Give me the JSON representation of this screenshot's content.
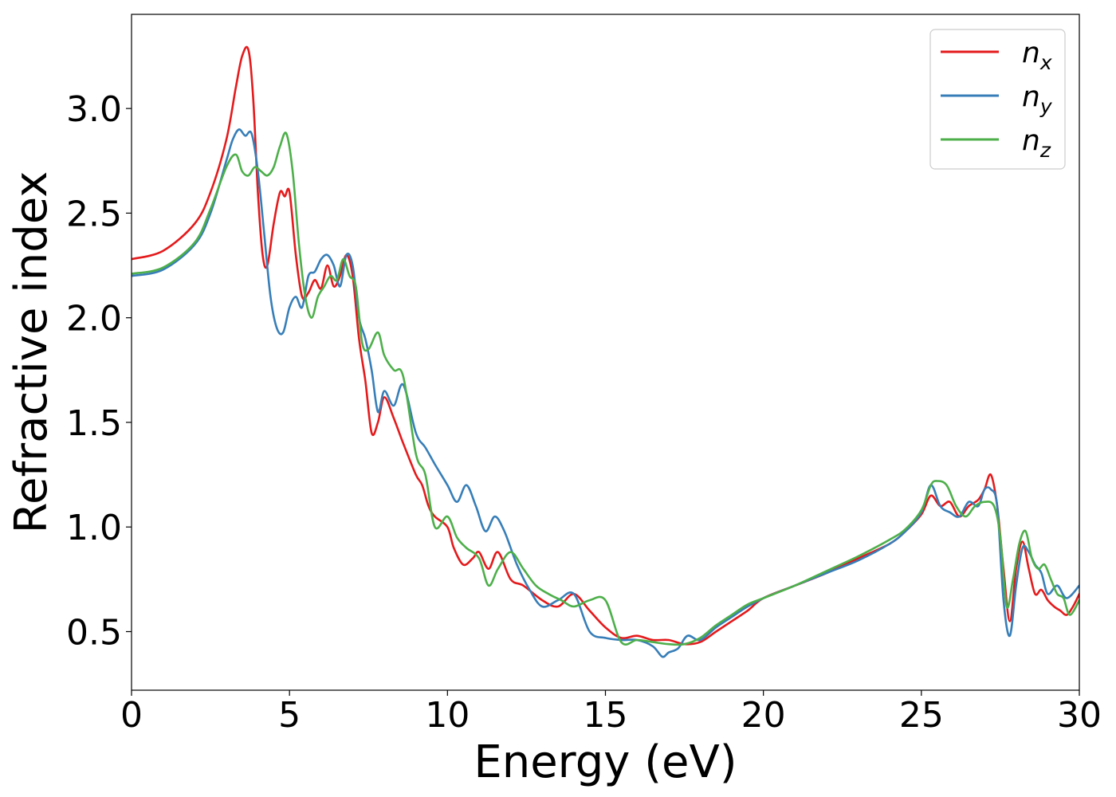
{
  "chart_data": {
    "type": "line",
    "title": "",
    "xlabel": "Energy (eV)",
    "ylabel": "Refractive index",
    "xlim": [
      0,
      30
    ],
    "ylim": [
      0.22,
      3.45
    ],
    "xticks": [
      0,
      5,
      10,
      15,
      20,
      25,
      30
    ],
    "xtick_labels": [
      "0",
      "5",
      "10",
      "15",
      "20",
      "25",
      "30"
    ],
    "yticks": [
      0.5,
      1.0,
      1.5,
      2.0,
      2.5,
      3.0
    ],
    "ytick_labels": [
      "0.5",
      "1.0",
      "1.5",
      "2.0",
      "2.5",
      "3.0"
    ],
    "grid": false,
    "legend_position": "top-right",
    "series": [
      {
        "name": "n",
        "subscript": "x",
        "color": "#e41a1c",
        "x": [
          0,
          1,
          2,
          2.5,
          3,
          3.3,
          3.5,
          3.7,
          3.85,
          4,
          4.15,
          4.3,
          4.5,
          4.7,
          4.85,
          5,
          5.2,
          5.4,
          5.6,
          5.8,
          6,
          6.2,
          6.4,
          6.6,
          6.8,
          7,
          7.2,
          7.4,
          7.6,
          7.8,
          8,
          8.3,
          8.6,
          9,
          9.2,
          9.4,
          9.6,
          10,
          10.2,
          10.5,
          10.8,
          11,
          11.3,
          11.6,
          12,
          12.4,
          13,
          13.5,
          14,
          14.5,
          15,
          15.5,
          16,
          16.5,
          17,
          17.5,
          18,
          18.5,
          19,
          19.5,
          20,
          21,
          22,
          23,
          24,
          24.5,
          25,
          25.3,
          25.6,
          25.9,
          26.2,
          26.5,
          26.8,
          27,
          27.2,
          27.4,
          27.6,
          27.8,
          28,
          28.2,
          28.4,
          28.6,
          28.8,
          29,
          29.2,
          29.4,
          29.6,
          29.8,
          30
        ],
        "y": [
          2.28,
          2.32,
          2.45,
          2.6,
          2.85,
          3.1,
          3.25,
          3.28,
          3.05,
          2.6,
          2.3,
          2.25,
          2.45,
          2.6,
          2.58,
          2.6,
          2.3,
          2.1,
          2.12,
          2.18,
          2.14,
          2.25,
          2.15,
          2.2,
          2.3,
          2.2,
          1.9,
          1.7,
          1.45,
          1.5,
          1.62,
          1.52,
          1.4,
          1.25,
          1.2,
          1.1,
          1.05,
          1.0,
          0.9,
          0.82,
          0.85,
          0.88,
          0.8,
          0.88,
          0.75,
          0.72,
          0.65,
          0.62,
          0.68,
          0.6,
          0.52,
          0.47,
          0.48,
          0.46,
          0.46,
          0.44,
          0.45,
          0.5,
          0.55,
          0.6,
          0.66,
          0.72,
          0.78,
          0.85,
          0.92,
          0.98,
          1.06,
          1.15,
          1.1,
          1.12,
          1.05,
          1.1,
          1.13,
          1.18,
          1.25,
          1.1,
          0.8,
          0.55,
          0.8,
          0.93,
          0.8,
          0.68,
          0.7,
          0.65,
          0.62,
          0.6,
          0.58,
          0.62,
          0.68
        ]
      },
      {
        "name": "n",
        "subscript": "y",
        "color": "#377eb8",
        "x": [
          0,
          1,
          2,
          2.5,
          3,
          3.2,
          3.4,
          3.6,
          3.8,
          4,
          4.2,
          4.4,
          4.6,
          4.8,
          5,
          5.2,
          5.4,
          5.6,
          5.8,
          6,
          6.2,
          6.4,
          6.6,
          6.8,
          7,
          7.2,
          7.4,
          7.6,
          7.8,
          8,
          8.3,
          8.6,
          9,
          9.3,
          9.6,
          10,
          10.3,
          10.6,
          10.9,
          11.2,
          11.5,
          11.8,
          12.2,
          12.6,
          13,
          13.5,
          14,
          14.5,
          15,
          15.5,
          16,
          16.5,
          16.8,
          17,
          17.3,
          17.6,
          18,
          18.5,
          19,
          19.5,
          20,
          21,
          22,
          23,
          24,
          24.5,
          25,
          25.3,
          25.6,
          25.9,
          26.2,
          26.5,
          26.8,
          27,
          27.2,
          27.4,
          27.6,
          27.8,
          28,
          28.2,
          28.4,
          28.6,
          28.8,
          29,
          29.3,
          29.6,
          30
        ],
        "y": [
          2.2,
          2.23,
          2.35,
          2.5,
          2.75,
          2.85,
          2.9,
          2.87,
          2.88,
          2.7,
          2.4,
          2.1,
          1.95,
          1.93,
          2.05,
          2.1,
          2.05,
          2.2,
          2.22,
          2.28,
          2.3,
          2.25,
          2.15,
          2.3,
          2.25,
          2.0,
          1.9,
          1.75,
          1.55,
          1.65,
          1.58,
          1.68,
          1.45,
          1.38,
          1.3,
          1.2,
          1.12,
          1.2,
          1.1,
          0.98,
          1.05,
          0.98,
          0.82,
          0.7,
          0.62,
          0.65,
          0.68,
          0.5,
          0.47,
          0.46,
          0.46,
          0.43,
          0.38,
          0.4,
          0.42,
          0.48,
          0.46,
          0.52,
          0.57,
          0.62,
          0.66,
          0.72,
          0.78,
          0.84,
          0.92,
          0.98,
          1.07,
          1.2,
          1.1,
          1.07,
          1.05,
          1.12,
          1.1,
          1.18,
          1.18,
          1.1,
          0.65,
          0.48,
          0.72,
          0.9,
          0.88,
          0.82,
          0.78,
          0.68,
          0.72,
          0.66,
          0.72
        ]
      },
      {
        "name": "n",
        "subscript": "z",
        "color": "#4daf4a",
        "x": [
          0,
          1,
          2,
          2.5,
          3,
          3.3,
          3.5,
          3.7,
          3.9,
          4.1,
          4.3,
          4.5,
          4.7,
          4.9,
          5.1,
          5.3,
          5.5,
          5.7,
          5.9,
          6.1,
          6.3,
          6.5,
          6.7,
          6.9,
          7.1,
          7.3,
          7.5,
          7.8,
          8,
          8.3,
          8.6,
          9,
          9.3,
          9.6,
          10,
          10.3,
          10.6,
          11,
          11.3,
          11.6,
          12,
          12.4,
          12.8,
          13.2,
          13.6,
          14,
          14.5,
          15,
          15.5,
          16,
          16.5,
          17,
          17.5,
          18,
          18.5,
          19,
          19.5,
          20,
          21,
          22,
          23,
          24,
          24.5,
          25,
          25.3,
          25.5,
          25.8,
          26.1,
          26.4,
          26.7,
          27,
          27.3,
          27.5,
          27.7,
          27.9,
          28.1,
          28.3,
          28.5,
          28.7,
          28.9,
          29.1,
          29.3,
          29.5,
          29.7,
          30
        ],
        "y": [
          2.21,
          2.24,
          2.36,
          2.52,
          2.72,
          2.78,
          2.7,
          2.68,
          2.72,
          2.7,
          2.68,
          2.72,
          2.82,
          2.88,
          2.7,
          2.35,
          2.1,
          2.0,
          2.1,
          2.15,
          2.2,
          2.18,
          2.28,
          2.2,
          2.15,
          1.88,
          1.85,
          1.93,
          1.82,
          1.75,
          1.72,
          1.35,
          1.25,
          1.0,
          1.05,
          0.95,
          0.9,
          0.85,
          0.72,
          0.8,
          0.88,
          0.8,
          0.72,
          0.68,
          0.65,
          0.62,
          0.65,
          0.65,
          0.45,
          0.46,
          0.45,
          0.44,
          0.44,
          0.47,
          0.53,
          0.58,
          0.63,
          0.66,
          0.72,
          0.79,
          0.86,
          0.94,
          0.99,
          1.08,
          1.2,
          1.22,
          1.2,
          1.1,
          1.05,
          1.1,
          1.12,
          1.1,
          0.95,
          0.62,
          0.75,
          0.92,
          0.98,
          0.85,
          0.8,
          0.82,
          0.75,
          0.68,
          0.66,
          0.58,
          0.65
        ]
      }
    ]
  }
}
